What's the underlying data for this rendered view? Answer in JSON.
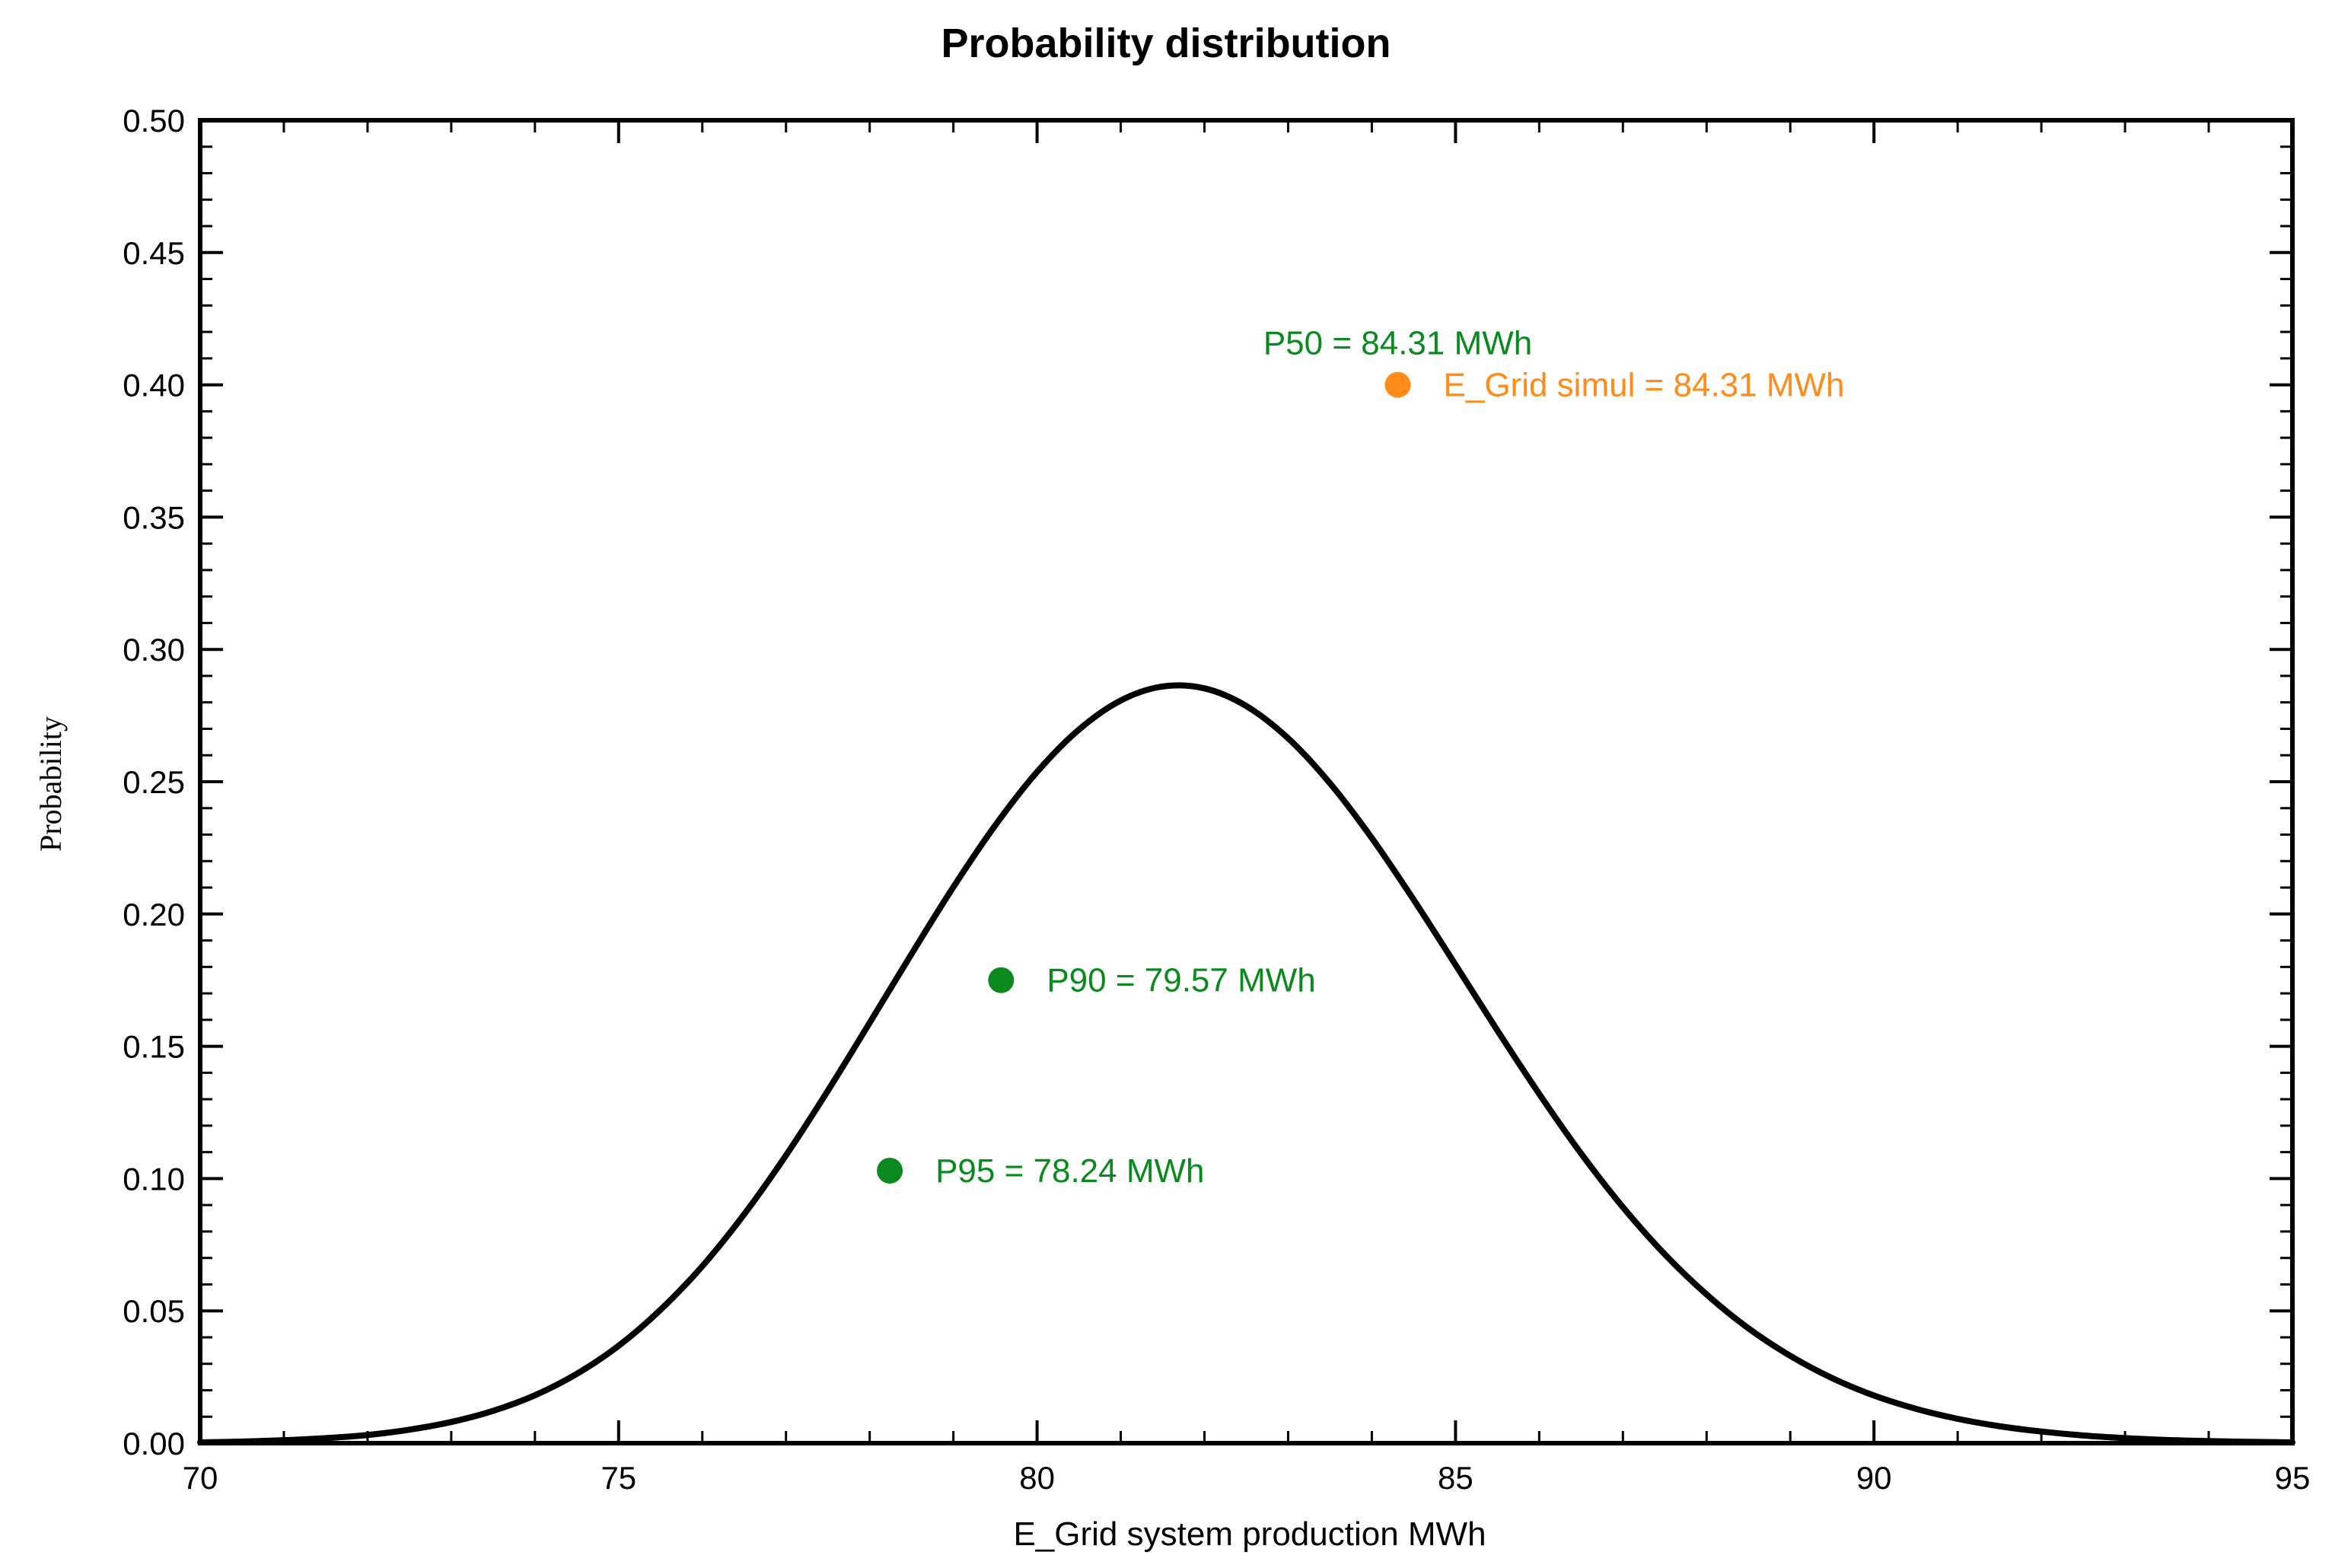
{
  "chart_data": {
    "type": "line",
    "title": "Probability distribution",
    "xlabel": "E_Grid system production MWh",
    "ylabel": "Probability",
    "xlim": [
      70,
      95
    ],
    "ylim": [
      0,
      0.5
    ],
    "x_ticks": [
      70,
      75,
      80,
      85,
      90,
      95
    ],
    "x_tick_labels": [
      "70",
      "75",
      "80",
      "85",
      "90",
      "95"
    ],
    "y_ticks": [
      0,
      0.05,
      0.1,
      0.15,
      0.2,
      0.25,
      0.3,
      0.35,
      0.4,
      0.45,
      0.5
    ],
    "y_tick_labels": [
      "0.00",
      "0.05",
      "0.10",
      "0.15",
      "0.20",
      "0.25",
      "0.30",
      "0.35",
      "0.40",
      "0.45",
      "0.50"
    ],
    "grid": false,
    "series": [
      {
        "name": "Probability",
        "color": "#000000",
        "x": [
          70,
          70.5,
          71,
          71.5,
          72,
          72.5,
          73,
          73.5,
          74,
          74.5,
          75,
          75.5,
          76,
          76.5,
          77,
          77.5,
          78,
          78.5,
          79,
          79.5,
          80,
          80.5,
          81,
          81.5,
          82,
          82.5,
          83,
          83.5,
          84,
          84.5,
          85,
          85.5,
          86,
          86.5,
          87,
          87.5,
          88,
          88.5,
          89,
          89.5,
          90,
          90.5,
          91,
          91.5,
          92,
          92.5,
          93,
          93.5,
          94,
          94.5,
          95
        ],
        "y": [
          0.0003,
          0.0006,
          0.0011,
          0.0019,
          0.0031,
          0.0051,
          0.008,
          0.0122,
          0.0181,
          0.0262,
          0.0368,
          0.0504,
          0.0669,
          0.0865,
          0.1088,
          0.1332,
          0.1589,
          0.1849,
          0.2102,
          0.2335,
          0.2537,
          0.2697,
          0.2807,
          0.286,
          0.2853,
          0.2786,
          0.2664,
          0.2494,
          0.2287,
          0.2054,
          0.1808,
          0.156,
          0.132,
          0.1095,
          0.0892,
          0.0714,
          0.0562,
          0.0434,
          0.033,
          0.0246,
          0.018,
          0.013,
          0.0092,
          0.0064,
          0.0044,
          0.0029,
          0.0019,
          0.0012,
          0.0008,
          0.0005,
          0.0003
        ]
      }
    ],
    "markers": [
      {
        "name": "P50",
        "label": "P50 = 84.31 MWh",
        "x": 84.31,
        "y": 0.4,
        "color": "#0a8a1e",
        "show_point": false,
        "label_position": "above"
      },
      {
        "name": "E_Grid simul",
        "label": "E_Grid simul = 84.31 MWh",
        "x": 84.31,
        "y": 0.4,
        "color": "#ff8c1a",
        "show_point": true,
        "label_position": "right"
      },
      {
        "name": "P90",
        "label": "P90 = 79.57 MWh",
        "x": 79.57,
        "y": 0.175,
        "color": "#0a8a1e",
        "show_point": true,
        "label_position": "right"
      },
      {
        "name": "P95",
        "label": "P95 = 78.24 MWh",
        "x": 78.24,
        "y": 0.103,
        "color": "#0a8a1e",
        "show_point": true,
        "label_position": "right"
      }
    ]
  }
}
